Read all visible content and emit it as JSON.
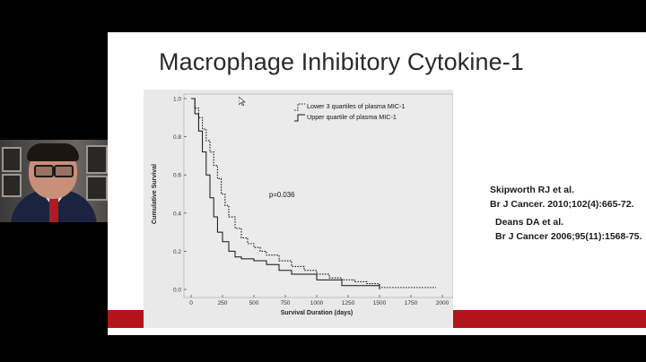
{
  "slide": {
    "title": "Macrophage Inhibitory Cytokine-1",
    "references": [
      {
        "line1": "Skipworth RJ et al.",
        "line2": "Br J Cancer. 2010;102(4):665-72."
      },
      {
        "line1": "Deans DA et al.",
        "line2": "Br J Cancer 2006;95(11):1568-75."
      }
    ],
    "accent_color": "#b3141c"
  },
  "chart_data": {
    "type": "line",
    "xlabel": "Survival Duration (days)",
    "ylabel": "Cumulative Survival",
    "xlim": [
      0,
      2000
    ],
    "ylim": [
      0,
      1.0
    ],
    "x_ticks": [
      "0",
      "250",
      "500",
      "750",
      "1000",
      "1250",
      "1500",
      "1750",
      "2000"
    ],
    "y_ticks": [
      "0.0",
      "0.2",
      "0.4",
      "0.6",
      "0.8",
      "1.0"
    ],
    "annotation": "p=0.036",
    "legend_position": "top-right",
    "series": [
      {
        "name": "Lower 3 quartiles of plasma MIC-1",
        "style": "dotted",
        "x": [
          0,
          30,
          60,
          90,
          120,
          150,
          180,
          210,
          240,
          270,
          300,
          350,
          400,
          450,
          500,
          550,
          600,
          700,
          800,
          900,
          1000,
          1100,
          1200,
          1300,
          1400,
          1500,
          1950
        ],
        "y": [
          1.0,
          0.95,
          0.9,
          0.84,
          0.78,
          0.72,
          0.65,
          0.58,
          0.5,
          0.44,
          0.38,
          0.32,
          0.27,
          0.24,
          0.22,
          0.2,
          0.18,
          0.15,
          0.12,
          0.1,
          0.08,
          0.06,
          0.05,
          0.04,
          0.03,
          0.01,
          0.01
        ]
      },
      {
        "name": "Upper quartile of plasma MIC-1",
        "style": "solid",
        "x": [
          0,
          30,
          60,
          90,
          120,
          150,
          180,
          210,
          250,
          300,
          350,
          400,
          500,
          600,
          700,
          800,
          1000,
          1200,
          1500
        ],
        "y": [
          1.0,
          0.92,
          0.83,
          0.72,
          0.6,
          0.48,
          0.38,
          0.3,
          0.25,
          0.2,
          0.17,
          0.16,
          0.15,
          0.13,
          0.1,
          0.08,
          0.05,
          0.02,
          0.0
        ]
      }
    ]
  }
}
